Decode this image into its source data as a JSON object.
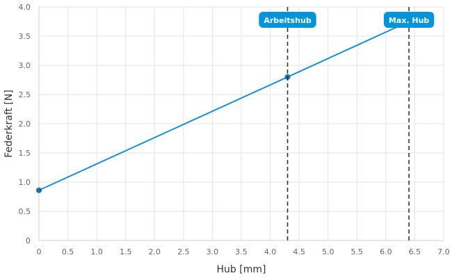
{
  "chart_data": {
    "type": "line",
    "xlabel": "Hub [mm]",
    "ylabel": "Federkraft [N]",
    "xlim": [
      0,
      7.0
    ],
    "ylim": [
      0,
      4.0
    ],
    "x_ticks": [
      "0",
      "0.5",
      "1.0",
      "1.5",
      "2.0",
      "2.5",
      "3.0",
      "3.5",
      "4.0",
      "4.5",
      "5.0",
      "5.5",
      "6.0",
      "6.5",
      "7.0"
    ],
    "y_ticks": [
      "0",
      "0.5",
      "1.0",
      "1.5",
      "2.0",
      "2.5",
      "3.0",
      "3.5",
      "4.0"
    ],
    "grid": true,
    "series": [
      {
        "x": [
          0,
          4.3,
          6.4
        ],
        "y": [
          0.86,
          2.8,
          3.75
        ],
        "color": "#1a8fd0",
        "points": [
          {
            "x": 0,
            "y": 0.86
          },
          {
            "x": 4.3,
            "y": 2.8
          }
        ]
      }
    ],
    "markers": [
      {
        "label": "Arbeitshub",
        "x": 4.3
      },
      {
        "label": "Max. Hub",
        "x": 6.4
      }
    ],
    "accent_color": "#0094d8",
    "point_color": "#1f6fa3"
  }
}
